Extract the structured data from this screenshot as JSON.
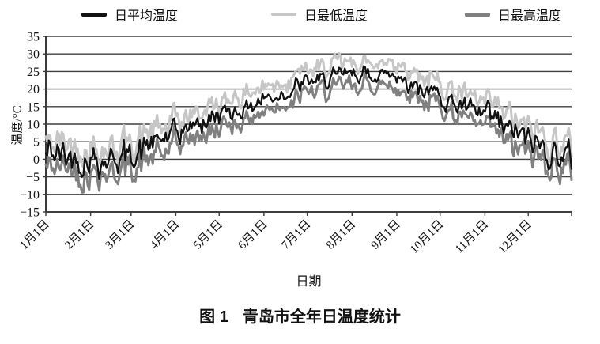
{
  "figure": {
    "caption_label": "图 1",
    "caption_text": "青岛市全年日温度统计",
    "xaxis_title": "日期",
    "yaxis_title": "温度/°C"
  },
  "colors": {
    "axis": "#3a3a3a",
    "grid": "#3f3f3f",
    "text": "#111111",
    "background": "#ffffff"
  },
  "chart_data": {
    "type": "line",
    "title": "青岛市全年日温度统计",
    "xlabel": "日期",
    "ylabel": "温度/°C",
    "ylim": [
      -15,
      35
    ],
    "ytick_step": 5,
    "grid": true,
    "legend_position": "top",
    "ytick_labels": [
      "35",
      "30",
      "25",
      "20",
      "15",
      "10",
      "5",
      "0",
      "−5",
      "−10",
      "−15"
    ],
    "xtick_labels": [
      "1月1日",
      "2月1日",
      "3月1日",
      "4月1日",
      "5月1日",
      "6月1日",
      "7月1日",
      "8月1日",
      "9月1日",
      "10月1日",
      "11月1日",
      "12月1日"
    ],
    "days": 365,
    "anchor_days": [
      0,
      31,
      59,
      90,
      120,
      151,
      181,
      212,
      243,
      273,
      304,
      334,
      364
    ],
    "noise_monthly": [
      3.6,
      3.5,
      3.2,
      2.5,
      2.2,
      2.0,
      1.8,
      1.8,
      2.0,
      2.2,
      3.2,
      3.6
    ],
    "noise_seed": 42,
    "series": [
      {
        "name": "日平均温度",
        "color": "#111111",
        "width": 2.3,
        "legend_thickness": 5,
        "anchors": [
          2,
          0,
          1,
          7,
          12.5,
          17,
          21.5,
          24,
          24,
          18,
          12,
          5,
          0
        ],
        "noise_scale": 1.0,
        "jitter": 1.0,
        "seed": 7
      },
      {
        "name": "日最低温度",
        "color": "#c6c6c6",
        "width": 3.0,
        "legend_thickness": 4,
        "anchors": [
          5.5,
          3.5,
          4.5,
          10.5,
          16,
          20.5,
          25,
          27.5,
          27.5,
          21.5,
          15.5,
          8.5,
          3.5
        ],
        "noise_scale": 1.05,
        "jitter": 1.3,
        "seed": 13
      },
      {
        "name": "日最高温度",
        "color": "#808080",
        "width": 3.0,
        "legend_thickness": 5,
        "anchors": [
          -1.5,
          -3.5,
          -2.5,
          3.5,
          9,
          13.5,
          18.5,
          21,
          21,
          15,
          8.5,
          1.5,
          -3.5
        ],
        "noise_scale": 1.05,
        "jitter": 1.3,
        "seed": 29
      }
    ]
  }
}
